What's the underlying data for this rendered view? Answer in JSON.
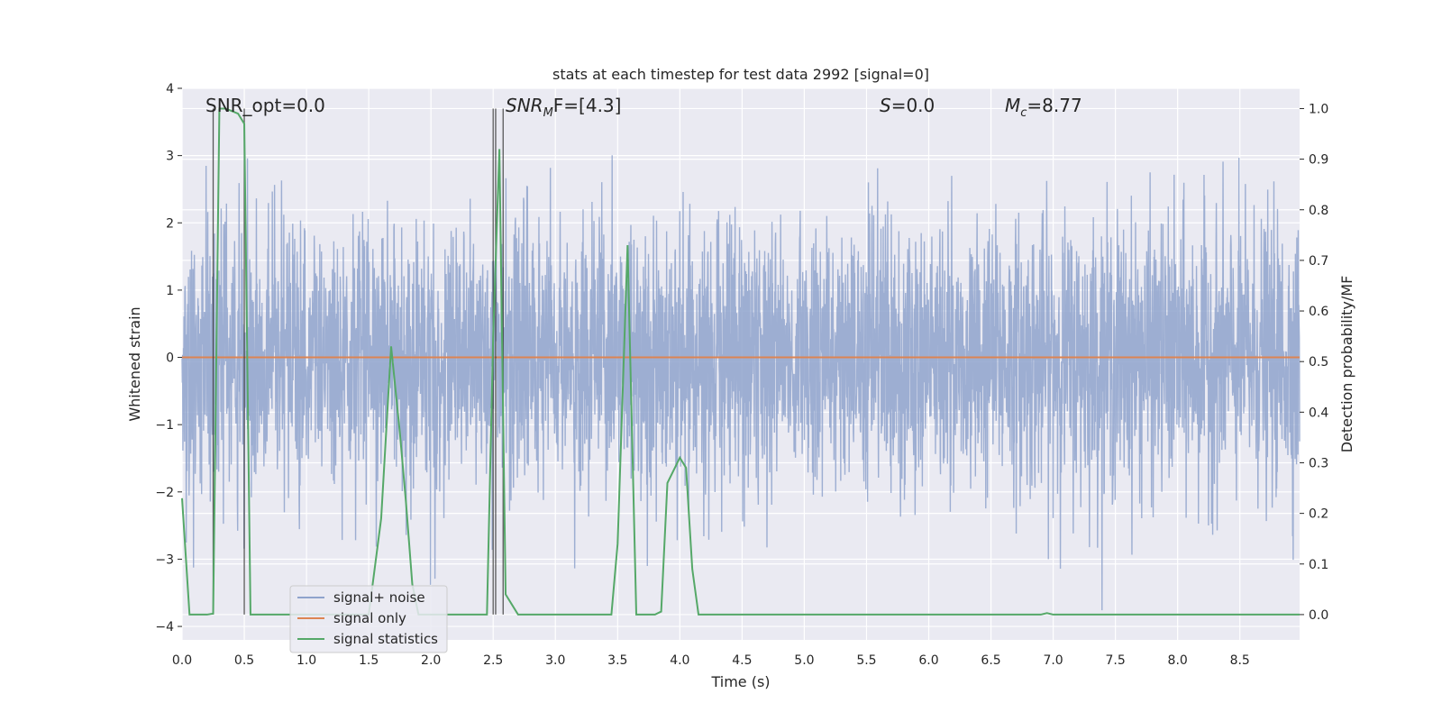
{
  "chart_data": {
    "type": "line",
    "title": "stats at each timestep for test data 2992 [signal=0]",
    "xlabel": "Time (s)",
    "ylabel_left": "Whitened strain",
    "ylabel_right": "Detection probability/MF",
    "xlim": [
      0.0,
      8.98
    ],
    "ylim_left": [
      -4.2,
      4.0
    ],
    "ylim_right": [
      -0.05,
      1.04
    ],
    "xticks": [
      "0.0",
      "0.5",
      "1.0",
      "1.5",
      "2.0",
      "2.5",
      "3.0",
      "3.5",
      "4.0",
      "4.5",
      "5.0",
      "5.5",
      "6.0",
      "6.5",
      "7.0",
      "7.5",
      "8.0",
      "8.5"
    ],
    "yticks_left": [
      "−4",
      "−3",
      "−2",
      "−1",
      "0",
      "1",
      "2",
      "3",
      "4"
    ],
    "yticks_right": [
      "0.0",
      "0.1",
      "0.2",
      "0.3",
      "0.4",
      "0.5",
      "0.6",
      "0.7",
      "0.8",
      "0.9",
      "1.0"
    ],
    "grid": true,
    "legend_position": "lower-left",
    "annotations": {
      "snr_opt": "SNR_opt=0.0",
      "snr_mf_base": "SNR",
      "snr_mf_sub": "M",
      "snr_mf_rest": "F=[4.3]",
      "s_label_var": "S",
      "s_label_rest": "=0.0",
      "mc_var": "M",
      "mc_sub": "c",
      "mc_rest": "=8.77"
    },
    "series": [
      {
        "name": "signal+ noise",
        "axis": "left",
        "color": "#8fa3cc",
        "generator": "noise",
        "sigma": 0.8,
        "n": 4000,
        "clip": [
          -4.0,
          3.7
        ]
      },
      {
        "name": "signal only",
        "axis": "left",
        "color": "#dd8452",
        "x": [
          0.0,
          8.98
        ],
        "y": [
          0.0,
          0.0
        ]
      },
      {
        "name": "signal statistics",
        "axis": "right",
        "color": "#55a868",
        "x": [
          0.0,
          0.06,
          0.2,
          0.25,
          0.3,
          0.35,
          0.45,
          0.5,
          0.55,
          0.6,
          1.4,
          1.5,
          1.6,
          1.68,
          1.75,
          1.8,
          1.85,
          1.9,
          2.4,
          2.45,
          2.5,
          2.55,
          2.6,
          2.65,
          2.7,
          3.4,
          3.45,
          3.5,
          3.58,
          3.65,
          3.8,
          3.85,
          3.9,
          4.0,
          4.05,
          4.1,
          4.15,
          4.2,
          4.4,
          6.9,
          6.95,
          7.0,
          8.98
        ],
        "y": [
          0.23,
          0.0,
          0.0,
          0.002,
          1.0,
          1.0,
          0.99,
          0.97,
          0.0,
          0.0,
          0.0,
          0.0,
          0.19,
          0.53,
          0.36,
          0.22,
          0.06,
          0.0,
          0.0,
          0.0,
          0.55,
          0.92,
          0.04,
          0.02,
          0.0,
          0.0,
          0.0,
          0.14,
          0.73,
          0.0,
          0.0,
          0.006,
          0.26,
          0.31,
          0.29,
          0.09,
          0.0,
          0.0,
          0.0,
          0.0,
          0.003,
          0.0,
          0.0
        ]
      }
    ],
    "vlines": [
      0.25,
      0.5,
      2.5,
      2.52,
      2.58
    ]
  }
}
